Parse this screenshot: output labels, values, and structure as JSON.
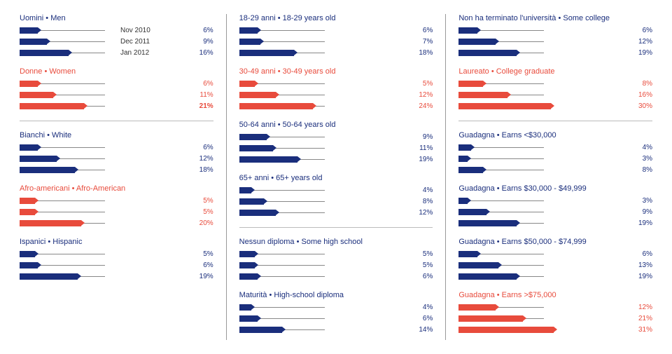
{
  "colors": {
    "blue": "#1a2e7c",
    "red": "#e84b3c"
  },
  "scale_max": 32,
  "bar_track_width": 140,
  "columns": [
    {
      "groups": [
        {
          "title": "Uomini • Men",
          "color_key": "blue",
          "show_labels": true,
          "bars": [
            {
              "label": "Nov 2010",
              "value": 6
            },
            {
              "label": "Dec 2011",
              "value": 9
            },
            {
              "label": "Jan 2012",
              "value": 16
            }
          ]
        },
        {
          "title": "Donne • Women",
          "color_key": "red",
          "bars": [
            {
              "value": 6
            },
            {
              "value": 11
            },
            {
              "value": 21,
              "bold": true
            }
          ]
        },
        {
          "divider": true
        },
        {
          "title": "Bianchi • White",
          "color_key": "blue",
          "bars": [
            {
              "value": 6
            },
            {
              "value": 12
            },
            {
              "value": 18
            }
          ]
        },
        {
          "title": "Afro-americani • Afro-American",
          "color_key": "red",
          "bars": [
            {
              "value": 5
            },
            {
              "value": 5
            },
            {
              "value": 20
            }
          ]
        },
        {
          "title": "Ispanici • Hispanic",
          "color_key": "blue",
          "bars": [
            {
              "value": 5
            },
            {
              "value": 6
            },
            {
              "value": 19
            }
          ]
        }
      ]
    },
    {
      "groups": [
        {
          "title": "18-29 anni • 18-29 years old",
          "color_key": "blue",
          "bars": [
            {
              "value": 6
            },
            {
              "value": 7
            },
            {
              "value": 18
            }
          ]
        },
        {
          "title": "30-49 anni • 30-49 years old",
          "color_key": "red",
          "bars": [
            {
              "value": 5
            },
            {
              "value": 12
            },
            {
              "value": 24
            }
          ]
        },
        {
          "title": "50-64 anni • 50-64 years old",
          "color_key": "blue",
          "bars": [
            {
              "value": 9
            },
            {
              "value": 11
            },
            {
              "value": 19
            }
          ]
        },
        {
          "title": "65+ anni • 65+ years old",
          "color_key": "blue",
          "bars": [
            {
              "value": 4
            },
            {
              "value": 8
            },
            {
              "value": 12
            }
          ]
        },
        {
          "divider": true
        },
        {
          "title": "Nessun diploma • Some high school",
          "color_key": "blue",
          "bars": [
            {
              "value": 5
            },
            {
              "value": 5
            },
            {
              "value": 6
            }
          ]
        },
        {
          "title": "Maturità • High-school diploma",
          "color_key": "blue",
          "bars": [
            {
              "value": 4
            },
            {
              "value": 6
            },
            {
              "value": 14
            }
          ]
        }
      ]
    },
    {
      "groups": [
        {
          "title": "Non ha terminato l'università • Some college",
          "color_key": "blue",
          "bars": [
            {
              "value": 6
            },
            {
              "value": 12
            },
            {
              "value": 19
            }
          ]
        },
        {
          "title": "Laureato • College graduate",
          "color_key": "red",
          "bars": [
            {
              "value": 8
            },
            {
              "value": 16
            },
            {
              "value": 30
            }
          ]
        },
        {
          "divider": true
        },
        {
          "title": "Guadagna • Earns <$30,000",
          "color_key": "blue",
          "bars": [
            {
              "value": 4
            },
            {
              "value": 3
            },
            {
              "value": 8
            }
          ]
        },
        {
          "title": "Guadagna • Earns $30,000 - $49,999",
          "color_key": "blue",
          "bars": [
            {
              "value": 3
            },
            {
              "value": 9
            },
            {
              "value": 19
            }
          ]
        },
        {
          "title": "Guadagna • Earns $50,000 - $74,999",
          "color_key": "blue",
          "bars": [
            {
              "value": 6
            },
            {
              "value": 13
            },
            {
              "value": 19
            }
          ]
        },
        {
          "title": "Guadagna • Earns >$75,000",
          "color_key": "red",
          "bars": [
            {
              "value": 12
            },
            {
              "value": 21
            },
            {
              "value": 31
            }
          ]
        }
      ]
    }
  ]
}
